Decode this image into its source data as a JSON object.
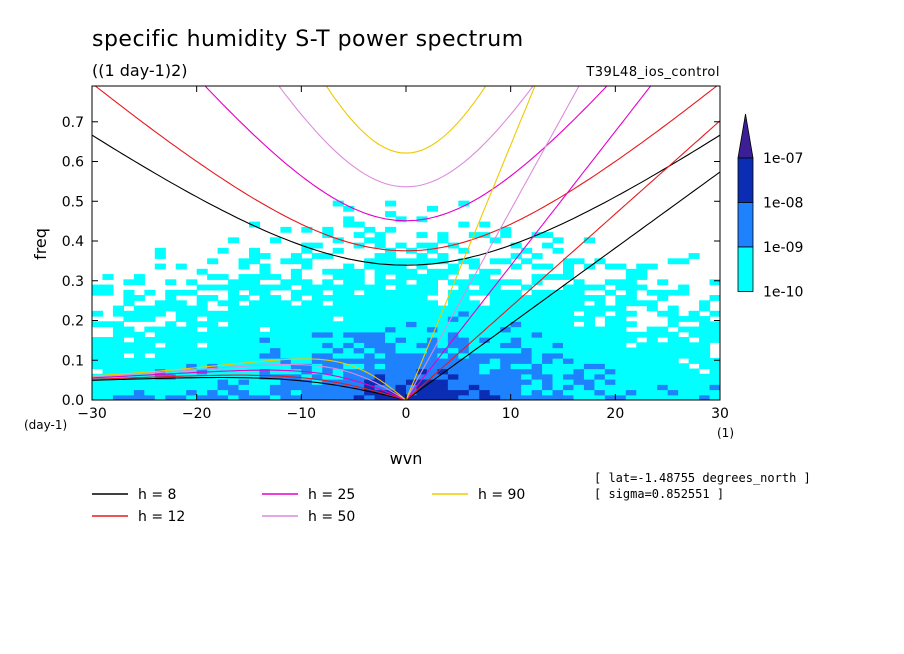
{
  "chart_data": {
    "type": "contour",
    "title": "specific humidity S-T power spectrum",
    "subtitle": "((1 day-1)2)",
    "run_label": "T39L48_ios_control",
    "xlabel": "wvn",
    "ylabel": "freq",
    "x_unit": "(1)",
    "y_unit": "(day-1)",
    "xlim": [
      -30,
      30
    ],
    "ylim": [
      0,
      0.79
    ],
    "xticks": [
      -30,
      -20,
      -10,
      0,
      10,
      20,
      30
    ],
    "yticks": [
      0.0,
      0.1,
      0.2,
      0.3,
      0.4,
      0.5,
      0.6,
      0.7
    ],
    "xtick_labels": [
      "−30",
      "−20",
      "−10",
      "0",
      "10",
      "20",
      "30"
    ],
    "ytick_labels": [
      "0.0",
      "0.1",
      "0.2",
      "0.3",
      "0.4",
      "0.5",
      "0.6",
      "0.7"
    ],
    "colorbar": {
      "levels": [
        "1e-10",
        "1e-09",
        "1e-08",
        "1e-07"
      ],
      "colors": [
        "#00ffff",
        "#1e82ff",
        "#0a2db4",
        "#3c1e96"
      ]
    },
    "dispersion_curves": [
      {
        "name": "h =  8",
        "h": 8,
        "color": "#000000"
      },
      {
        "name": "h = 12",
        "h": 12,
        "color": "#e8191e"
      },
      {
        "name": "h = 25",
        "h": 25,
        "color": "#e600c8"
      },
      {
        "name": "h = 50",
        "h": 50,
        "color": "#dc8cdc"
      },
      {
        "name": "h = 90",
        "h": 90,
        "color": "#f0c800"
      }
    ],
    "annotations": [
      "[ lat=-1.48755 degrees_north ]",
      "[ sigma=0.852551 ]"
    ]
  }
}
